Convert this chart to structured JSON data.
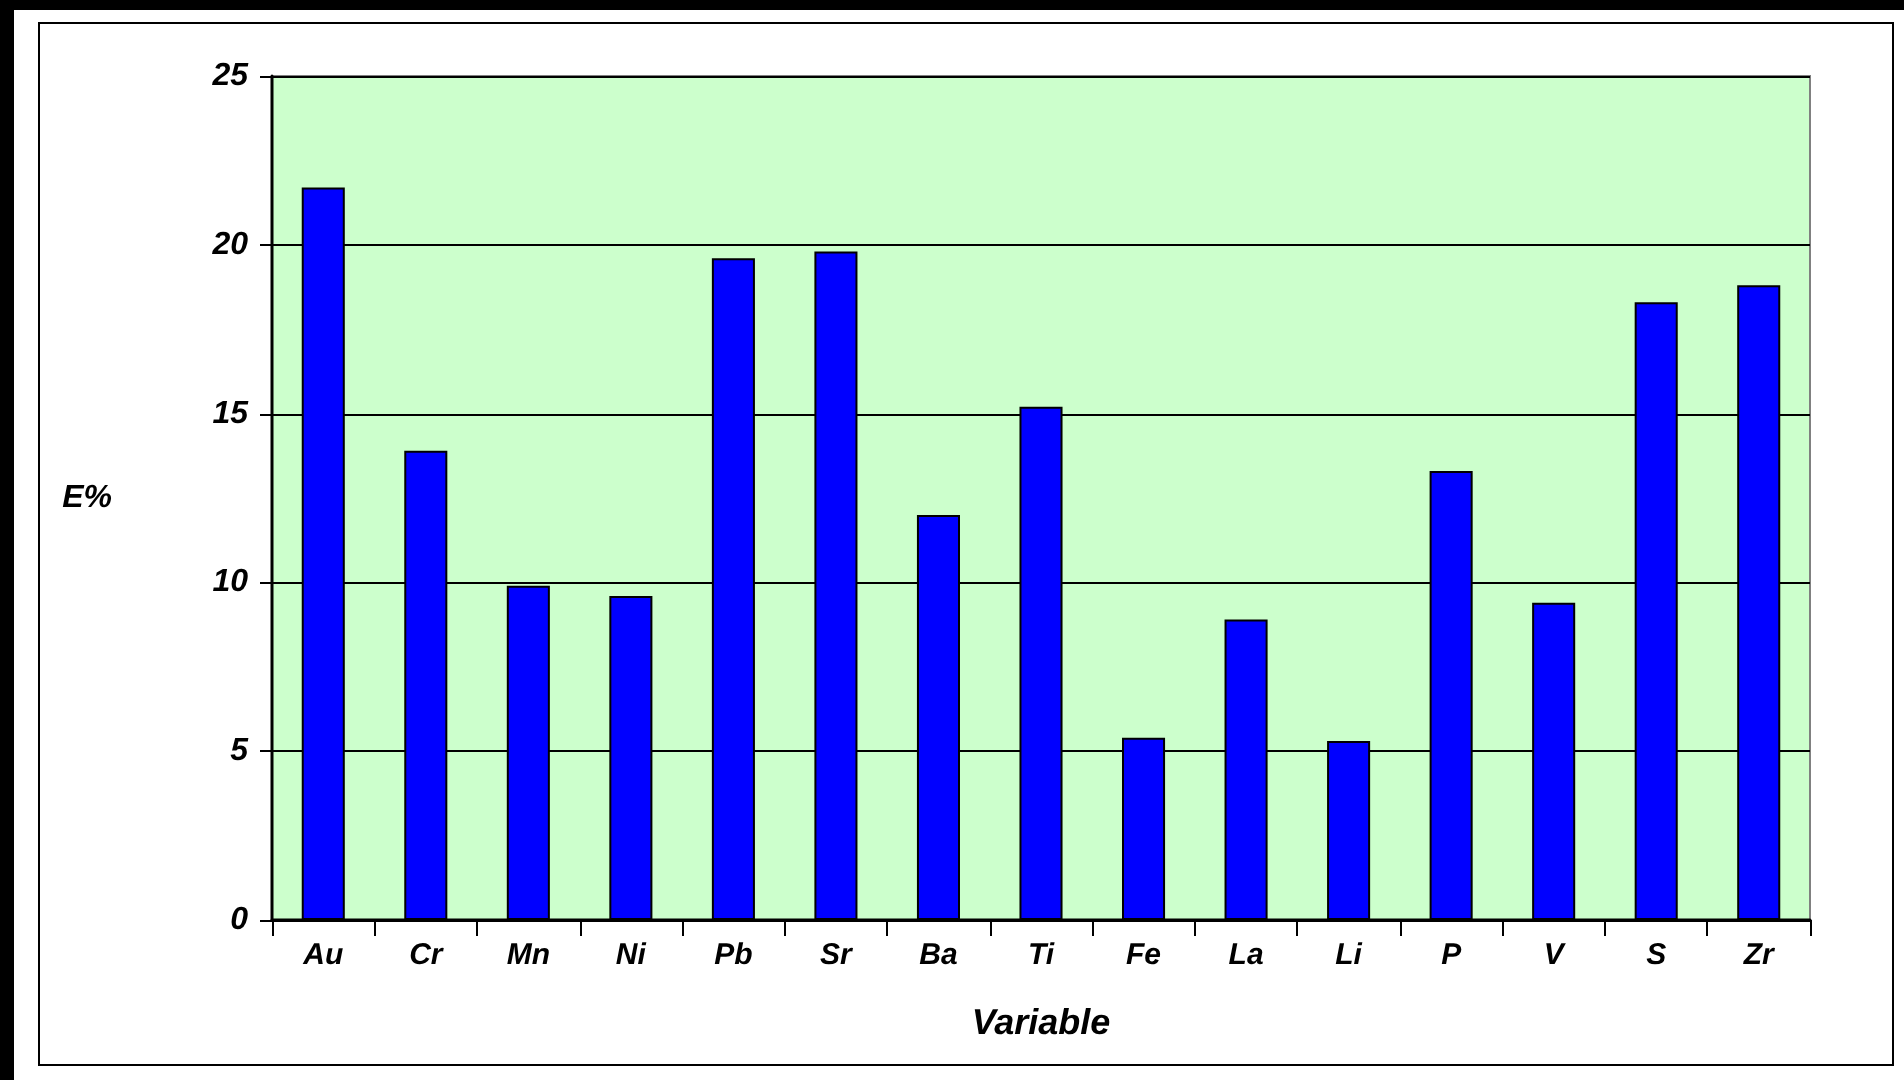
{
  "chart_data": {
    "type": "bar",
    "xlabel": "Variable",
    "ylabel": "E%",
    "categories": [
      "Au",
      "Cr",
      "Mn",
      "Ni",
      "Pb",
      "Sr",
      "Ba",
      "Ti",
      "Fe",
      "La",
      "Li",
      "P",
      "V",
      "S",
      "Zr"
    ],
    "values": [
      21.7,
      13.9,
      9.9,
      9.6,
      19.6,
      19.8,
      12.0,
      15.2,
      5.4,
      8.9,
      5.3,
      13.3,
      9.4,
      18.3,
      18.8
    ],
    "color": "#0000ff",
    "ylim": [
      0,
      25
    ],
    "yticks": [
      0,
      5,
      10,
      15,
      20,
      25
    ],
    "grid": "y"
  }
}
